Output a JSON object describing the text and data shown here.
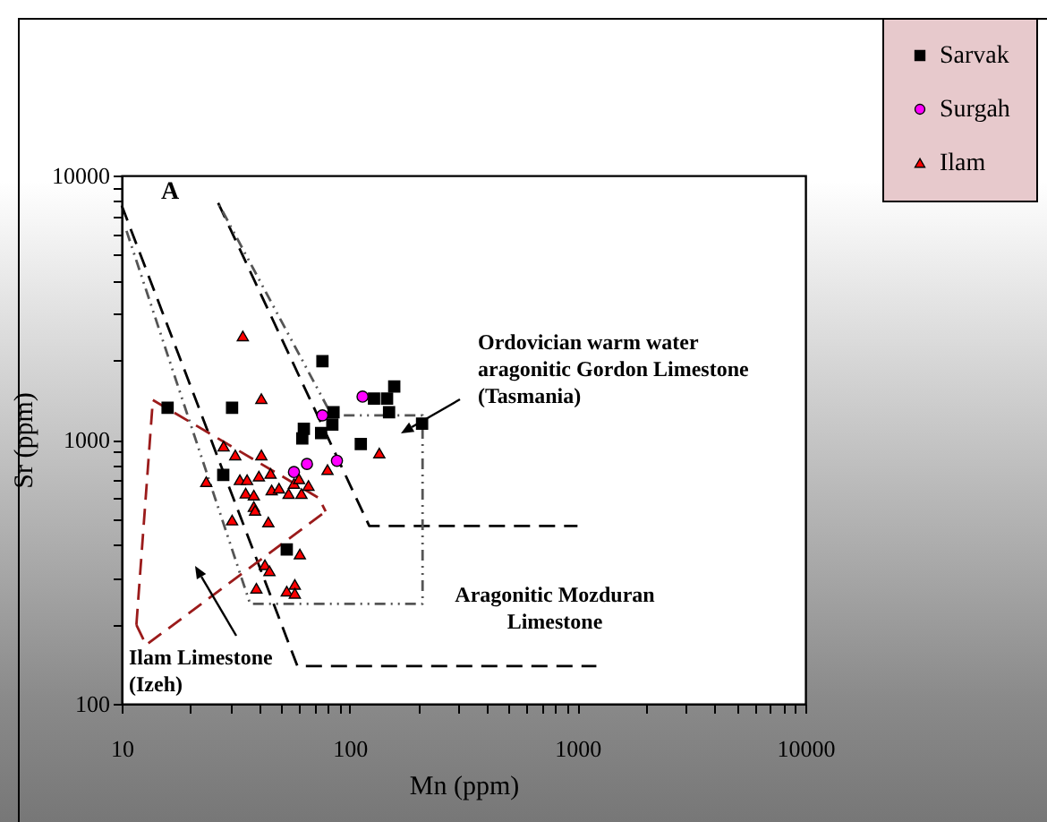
{
  "chart_data": {
    "type": "scatter",
    "xlabel": "Mn (ppm)",
    "ylabel": "Sr (ppm)",
    "log": "xy",
    "grid": false,
    "legend": "top right",
    "xlim": [
      10,
      10000
    ],
    "ylim": [
      100,
      10000
    ],
    "xticks": [
      10,
      {
        "value": 20,
        "label": null
      },
      {
        "value": 30,
        "label": null
      },
      {
        "value": 40,
        "label": null
      },
      {
        "value": 50,
        "label": null
      },
      {
        "value": 60,
        "label": null
      },
      {
        "value": 70,
        "label": null
      },
      {
        "value": 80,
        "label": null
      },
      {
        "value": 90,
        "label": null
      },
      100,
      {
        "value": 200,
        "label": null
      },
      {
        "value": 300,
        "label": null
      },
      {
        "value": 400,
        "label": null
      },
      {
        "value": 500,
        "label": null
      },
      {
        "value": 600,
        "label": null
      },
      {
        "value": 700,
        "label": null
      },
      {
        "value": 800,
        "label": null
      },
      {
        "value": 900,
        "label": null
      },
      1000,
      {
        "value": 2000,
        "label": null
      },
      {
        "value": 3000,
        "label": null
      },
      {
        "value": 4000,
        "label": null
      },
      {
        "value": 5000,
        "label": null
      },
      {
        "value": 6000,
        "label": null
      },
      {
        "value": 7000,
        "label": null
      },
      {
        "value": 8000,
        "label": null
      },
      {
        "value": 9000,
        "label": null
      },
      10000
    ],
    "yticks": [
      100,
      {
        "value": 200,
        "label": null
      },
      {
        "value": 300,
        "label": null
      },
      {
        "value": 400,
        "label": null
      },
      {
        "value": 500,
        "label": null
      },
      {
        "value": 600,
        "label": null
      },
      {
        "value": 700,
        "label": null
      },
      {
        "value": 800,
        "label": null
      },
      {
        "value": 900,
        "label": null
      },
      1000,
      {
        "value": 2000,
        "label": null
      },
      {
        "value": 3000,
        "label": null
      },
      {
        "value": 4000,
        "label": null
      },
      {
        "value": 5000,
        "label": null
      },
      {
        "value": 6000,
        "label": null
      },
      {
        "value": 7000,
        "label": null
      },
      {
        "value": 8000,
        "label": null
      },
      {
        "value": 9000,
        "label": null
      },
      10000
    ],
    "annotations": [
      "A",
      "Ordovician warm water\naragonitic Gordon Limestone\n(Tasmania)",
      "Aragonitic Mozduran\nLimestone",
      "Ilam Limestone\n(Izeh)"
    ],
    "series": [
      {
        "type": "line",
        "color": "#000000",
        "line_style": "dashed",
        "marker": "none",
        "x": [
          26.5,
          122,
          1000
        ],
        "values": [
          7870,
          471,
          471
        ]
      },
      {
        "type": "line",
        "color": "#000000",
        "line_style": "dashed",
        "marker": "none",
        "x": [
          10,
          59,
          1210
        ],
        "values": [
          7700,
          139,
          139
        ]
      },
      {
        "type": "line",
        "color": "#555555",
        "line_style": "dotted",
        "marker": "none",
        "x": [
          10.5,
          36.6,
          209,
          209,
          83.5,
          26.5
        ],
        "values": [
          6170,
          239,
          239,
          1236,
          1236,
          7870
        ]
      },
      {
        "type": "line",
        "color": "#9b1b1b",
        "line_style": "dashed",
        "marker": "none",
        "x": [
          13.7,
          73.4,
          78.5
        ],
        "values": [
          1413,
          601,
          535
        ]
      },
      {
        "type": "line",
        "color": "#9b1b1b",
        "line_style": "dashed",
        "marker": "none",
        "x": [
          11.6,
          12.8,
          78.5
        ],
        "values": [
          199,
          167,
          535
        ]
      },
      {
        "type": "line",
        "color": "#9b1b1b",
        "line_style": "dashed",
        "marker": "none",
        "x": [
          11.6,
          13.7
        ],
        "values": [
          199,
          1413
        ]
      },
      {
        "name": "Sarvak",
        "color": "#000000",
        "marker": "square",
        "x": [
          15.9,
          30.5,
          27.9,
          76,
          128,
          146,
          157,
          149,
          85,
          84,
          63,
          62,
          75,
          112,
          208,
          53
        ],
        "values": [
          1320,
          1320,
          736,
          1980,
          1430,
          1430,
          1590,
          1270,
          1270,
          1140,
          1100,
          1010,
          1060,
          963,
          1150,
          384
        ]
      },
      {
        "name": "Surgah",
        "color": "#ff00ff",
        "marker": "circle",
        "x": [
          114,
          76,
          65,
          57,
          88
        ],
        "values": [
          1455,
          1236,
          809,
          754,
          832
        ]
      },
      {
        "name": "Ilam",
        "color": "#ff0000",
        "marker": "triangle",
        "x": [
          34,
          41,
          135,
          80,
          28,
          31.5,
          41,
          23.5,
          33,
          35.5,
          40,
          45,
          35,
          38,
          45.5,
          49,
          54,
          57,
          60,
          61.5,
          66,
          38,
          38.5,
          30.5,
          44,
          60.5,
          42.5,
          44.5,
          39,
          53,
          57.5,
          57.5
        ],
        "values": [
          2470,
          1430,
          890,
          770,
          945,
          875,
          875,
          693,
          705,
          705,
          728,
          745,
          627,
          617,
          645,
          655,
          625,
          683,
          711,
          625,
          671,
          558,
          540,
          496,
          488,
          369,
          336,
          319,
          274,
          267,
          283,
          262
        ]
      }
    ]
  }
}
